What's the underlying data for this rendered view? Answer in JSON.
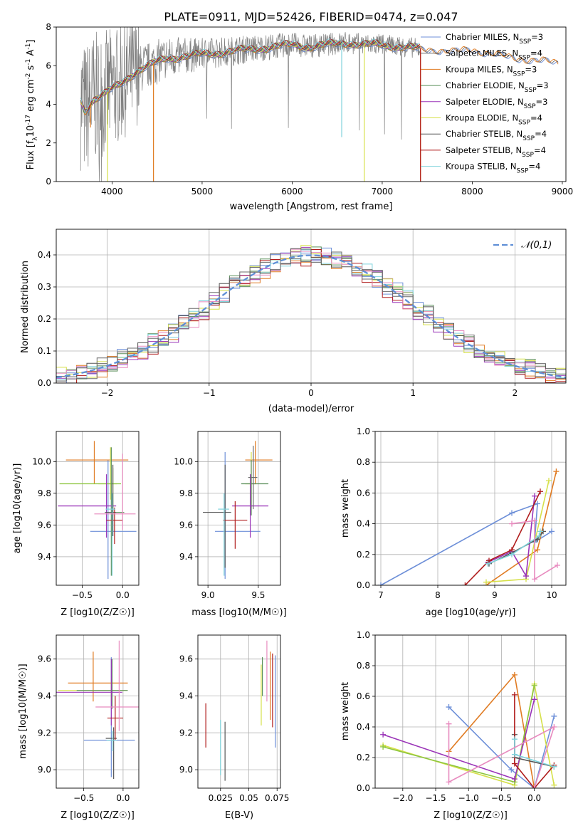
{
  "figure": {
    "title": "PLATE=0911, MJD=52426, FIBERID=0474, z=0.047"
  },
  "palette": {
    "Chabrier MILES": "#6d8fd8",
    "Salpeter MILES": "#6b6b6b",
    "Kroupa MILES": "#e07b22",
    "Chabrier ELODIE": "#5a8f5a",
    "Salpeter ELODIE": "#9a34b8",
    "Kroupa ELODIE": "#d6e04a",
    "Chabrier STELIB": "#555555",
    "Salpeter STELIB": "#b01c1c",
    "Kroupa STELIB": "#7fd3dc",
    "extra_pink": "#e88bbf",
    "extra_green": "#8dc63f",
    "observed": "#808080",
    "normal_curve": "#5f8fd6"
  },
  "chart_data": [
    {
      "panel": "spectrum",
      "type": "line",
      "title": "PLATE=0911, MJD=52426, FIBERID=0474, z=0.047",
      "xlabel": "wavelength [Angstrom, rest frame]",
      "ylabel": "Flux [f_λ 10^-17 erg cm^-2 s^-1 A^-1]",
      "xlim": [
        3380,
        9040
      ],
      "ylim": [
        0,
        8
      ],
      "xticks": [
        4000,
        5000,
        6000,
        7000,
        8000,
        9000
      ],
      "yticks": [
        0,
        2,
        4,
        6,
        8
      ],
      "grid": false,
      "legend_position": "top-right",
      "legend": [
        "Chabrier MILES, N_SSP=3",
        "Salpeter MILES, N_SSP=4",
        "Kroupa MILES, N_SSP=3",
        "Chabrier ELODIE, N_SSP=3",
        "Salpeter ELODIE, N_SSP=3",
        "Kroupa ELODIE, N_SSP=4",
        "Chabrier STELIB, N_SSP=4",
        "Salpeter STELIB, N_SSP=4",
        "Kroupa STELIB, N_SSP=4"
      ],
      "continuum": {
        "x": [
          3650,
          3700,
          3800,
          3900,
          4000,
          4100,
          4200,
          4300,
          4400,
          4500,
          4600,
          4800,
          5000,
          5200,
          5400,
          5600,
          5800,
          6000,
          6200,
          6400,
          6600,
          6800,
          7000,
          7200,
          7400,
          7600,
          7800,
          8000,
          8200,
          8400,
          8600,
          8800,
          8960
        ],
        "y": [
          4.2,
          3.7,
          4.3,
          4.5,
          4.8,
          5.1,
          5.5,
          5.8,
          6.0,
          6.2,
          6.4,
          6.5,
          6.6,
          6.7,
          6.8,
          6.9,
          7.0,
          7.1,
          7.0,
          7.1,
          7.2,
          7.1,
          7.1,
          7.0,
          6.9,
          6.9,
          6.8,
          6.9,
          6.7,
          6.5,
          6.4,
          6.3,
          6.2
        ]
      },
      "obs_range": [
        3650,
        7420
      ],
      "obs_noise_band": [
        {
          "x": 3650,
          "lo": 0.0,
          "hi": 8.0
        },
        {
          "x": 4200,
          "lo": 1.5,
          "hi": 8.0
        },
        {
          "x": 5000,
          "lo": 4.0,
          "hi": 8.0
        },
        {
          "x": 6000,
          "lo": 5.0,
          "hi": 8.0
        },
        {
          "x": 7420,
          "lo": 5.5,
          "hi": 8.0
        }
      ],
      "model_dips": [
        {
          "x": 3760,
          "to": 2.8,
          "colors": [
            "Kroupa MILES"
          ]
        },
        {
          "x": 3950,
          "to": 0.0,
          "colors": [
            "Kroupa ELODIE"
          ]
        },
        {
          "x": 4460,
          "to": 0.0,
          "colors": [
            "Kroupa MILES"
          ]
        },
        {
          "x": 6550,
          "to": 2.3,
          "colors": [
            "Kroupa STELIB"
          ]
        },
        {
          "x": 6800,
          "to": 0.0,
          "colors": [
            "Kroupa ELODIE"
          ]
        },
        {
          "x": 7425,
          "to": 0.0,
          "colors": [
            "Kroupa MILES",
            "Salpeter STELIB"
          ]
        }
      ]
    },
    {
      "panel": "residuals",
      "type": "histogram",
      "xlabel": "(data-model)/error",
      "ylabel": "Normed distribution",
      "xlim": [
        -2.5,
        2.5
      ],
      "ylim": [
        0,
        0.48
      ],
      "xticks": [
        -2,
        -1,
        0,
        1,
        2
      ],
      "yticks": [
        0.0,
        0.1,
        0.2,
        0.3,
        0.4
      ],
      "grid": true,
      "legend_position": "top-right",
      "legend": [
        "𝒩(0,1)"
      ],
      "bin_width": 0.1,
      "reference": {
        "mean": 0,
        "sigma": 1,
        "type": "normal"
      },
      "series_offsets": [
        0.01,
        -0.012,
        0.015,
        -0.008,
        0.006,
        -0.015,
        0.012,
        -0.005,
        0.009,
        0.0
      ]
    },
    {
      "panel": "age_vs_Z",
      "type": "errorbar",
      "xlabel": "Z [log10(Z/Z☉)]",
      "ylabel": "age [log10(age/yr)]",
      "xlim": [
        -0.82,
        0.2
      ],
      "ylim": [
        9.22,
        10.19
      ],
      "xticks": [
        -0.5,
        0.0
      ],
      "yticks": [
        9.4,
        9.6,
        9.8,
        10.0
      ],
      "grid": true,
      "points": [
        {
          "x": -0.18,
          "xerr": [
            0.22,
            0.35
          ],
          "y": 9.56,
          "yerr": [
            0.3,
            0.45
          ],
          "color": "Chabrier MILES"
        },
        {
          "x": -0.35,
          "xerr": [
            0.35,
            0.42
          ],
          "y": 10.01,
          "yerr": [
            0.15,
            0.12
          ],
          "color": "Kroupa MILES"
        },
        {
          "x": -0.15,
          "xerr": [
            0.15,
            0.08
          ],
          "y": 9.86,
          "yerr": [
            0.1,
            0.23
          ],
          "color": "Kroupa ELODIE"
        },
        {
          "x": -0.12,
          "xerr": [
            0.66,
            0.1
          ],
          "y": 9.86,
          "yerr": [
            0.2,
            0.1
          ],
          "color": "extra_green"
        },
        {
          "x": -0.14,
          "xerr": [
            0.06,
            0.16
          ],
          "y": 9.68,
          "yerr": [
            0.4,
            0.41
          ],
          "color": "Chabrier ELODIE"
        },
        {
          "x": -0.2,
          "xerr": [
            0.6,
            0.12
          ],
          "y": 9.72,
          "yerr": [
            0.2,
            0.2
          ],
          "color": "Salpeter ELODIE"
        },
        {
          "x": -0.12,
          "xerr": [
            0.1,
            0.04
          ],
          "y": 9.68,
          "yerr": [
            0.15,
            0.3
          ],
          "color": "Chabrier STELIB"
        },
        {
          "x": -0.1,
          "xerr": [
            0.1,
            0.1
          ],
          "y": 9.63,
          "yerr": [
            0.15,
            0.08
          ],
          "color": "Salpeter STELIB"
        },
        {
          "x": -0.13,
          "xerr": [
            0.08,
            0.04
          ],
          "y": 9.7,
          "yerr": [
            0.42,
            0.1
          ],
          "color": "Kroupa STELIB"
        },
        {
          "x": 0.0,
          "xerr": [
            0.35,
            0.16
          ],
          "y": 9.67,
          "yerr": [
            0.1,
            0.38
          ],
          "color": "extra_pink"
        }
      ]
    },
    {
      "panel": "age_vs_mass",
      "type": "errorbar",
      "xlabel": "mass [log10(M/M☉)]",
      "ylabel": "",
      "xlim": [
        8.9,
        9.72
      ],
      "ylim": [
        9.22,
        10.19
      ],
      "xticks": [
        9.0,
        9.5
      ],
      "yticks": [
        9.4,
        9.6,
        9.8,
        10.0
      ],
      "grid": true,
      "points": [
        {
          "x": 9.17,
          "xerr": [
            0.1,
            0.35
          ],
          "y": 9.56,
          "yerr": [
            0.3,
            0.5
          ],
          "color": "Chabrier MILES"
        },
        {
          "x": 9.47,
          "xerr": [
            0.1,
            0.17
          ],
          "y": 10.01,
          "yerr": [
            0.15,
            0.12
          ],
          "color": "Kroupa MILES"
        },
        {
          "x": 9.43,
          "xerr": [
            0.06,
            0.05
          ],
          "y": 9.86,
          "yerr": [
            0.15,
            0.2
          ],
          "color": "Kroupa ELODIE"
        },
        {
          "x": 9.43,
          "xerr": [
            0.1,
            0.17
          ],
          "y": 9.86,
          "yerr": [
            0.2,
            0.15
          ],
          "color": "Chabrier ELODIE"
        },
        {
          "x": 9.42,
          "xerr": [
            0.18,
            0.18
          ],
          "y": 9.72,
          "yerr": [
            0.2,
            0.2
          ],
          "color": "Salpeter ELODIE"
        },
        {
          "x": 9.17,
          "xerr": [
            0.22,
            0.06
          ],
          "y": 9.68,
          "yerr": [
            0.35,
            0.3
          ],
          "color": "Chabrier STELIB"
        },
        {
          "x": 9.27,
          "xerr": [
            0.12,
            0.12
          ],
          "y": 9.63,
          "yerr": [
            0.18,
            0.12
          ],
          "color": "Salpeter STELIB"
        },
        {
          "x": 9.16,
          "xerr": [
            0.06,
            0.05
          ],
          "y": 9.7,
          "yerr": [
            0.42,
            0.1
          ],
          "color": "Kroupa STELIB"
        },
        {
          "x": 9.45,
          "xerr": [
            0.05,
            0.04
          ],
          "y": 9.9,
          "yerr": [
            0.2,
            0.2
          ],
          "color": "Salpeter MILES"
        }
      ]
    },
    {
      "panel": "mass_weight_vs_age",
      "type": "line",
      "xlabel": "age [log10(age/yr)]",
      "ylabel": "mass weight",
      "xlim": [
        6.9,
        10.25
      ],
      "ylim": [
        0.0,
        1.0
      ],
      "xticks": [
        7,
        8,
        9,
        10
      ],
      "yticks": [
        0.0,
        0.2,
        0.4,
        0.6,
        0.8,
        1.0
      ],
      "grid": true,
      "series": [
        {
          "color": "Chabrier MILES",
          "x": [
            7.0,
            9.3,
            9.75,
            9.7,
            10.0
          ],
          "y": [
            0.0,
            0.47,
            0.53,
            0.28,
            0.35
          ]
        },
        {
          "color": "Kroupa MILES",
          "x": [
            8.85,
            9.75,
            10.08
          ],
          "y": [
            0.0,
            0.23,
            0.74
          ]
        },
        {
          "color": "Kroupa ELODIE",
          "x": [
            8.85,
            9.55,
            9.95
          ],
          "y": [
            0.02,
            0.04,
            0.68
          ]
        },
        {
          "color": "Salpeter ELODIE",
          "x": [
            8.88,
            9.3,
            9.55,
            9.7
          ],
          "y": [
            0.15,
            0.22,
            0.06,
            0.58
          ]
        },
        {
          "color": "Chabrier STELIB",
          "x": [
            8.9,
            9.3,
            9.75,
            9.85
          ],
          "y": [
            0.14,
            0.21,
            0.3,
            0.35
          ]
        },
        {
          "color": "Salpeter STELIB",
          "x": [
            8.48,
            8.9,
            9.3,
            9.8
          ],
          "y": [
            0.0,
            0.16,
            0.23,
            0.61
          ]
        },
        {
          "color": "Kroupa STELIB",
          "x": [
            8.88,
            9.3,
            9.78,
            9.8
          ],
          "y": [
            0.14,
            0.2,
            0.32,
            0.35
          ]
        },
        {
          "color": "extra_pink",
          "x": [
            9.3,
            9.7,
            9.7,
            10.1
          ],
          "y": [
            0.4,
            0.42,
            0.04,
            0.13
          ]
        }
      ]
    },
    {
      "panel": "mass_vs_Z",
      "type": "errorbar",
      "xlabel": "Z [log10(Z/Z☉)]",
      "ylabel": "mass [log10(M/M☉)]",
      "xlim": [
        -0.85,
        0.2
      ],
      "ylim": [
        8.9,
        9.73
      ],
      "xticks": [
        -0.5,
        0.0
      ],
      "yticks": [
        9.0,
        9.2,
        9.4,
        9.6
      ],
      "grid": true,
      "points": [
        {
          "x": -0.15,
          "xerr": [
            0.35,
            0.3
          ],
          "y": 9.16,
          "yerr": [
            0.2,
            0.45
          ],
          "color": "Chabrier MILES"
        },
        {
          "x": -0.38,
          "xerr": [
            0.32,
            0.44
          ],
          "y": 9.47,
          "yerr": [
            0.1,
            0.17
          ],
          "color": "Kroupa MILES"
        },
        {
          "x": -0.15,
          "xerr": [
            0.68,
            0.2
          ],
          "y": 9.43,
          "yerr": [
            0.06,
            0.05
          ],
          "color": "Kroupa ELODIE"
        },
        {
          "x": -0.14,
          "xerr": [
            0.45,
            0.2
          ],
          "y": 9.43,
          "yerr": [
            0.1,
            0.17
          ],
          "color": "Chabrier ELODIE"
        },
        {
          "x": -0.15,
          "xerr": [
            0.72,
            0.14
          ],
          "y": 9.42,
          "yerr": [
            0.18,
            0.18
          ],
          "color": "Salpeter ELODIE"
        },
        {
          "x": -0.12,
          "xerr": [
            0.1,
            0.04
          ],
          "y": 9.17,
          "yerr": [
            0.22,
            0.06
          ],
          "color": "Chabrier STELIB"
        },
        {
          "x": -0.1,
          "xerr": [
            0.1,
            0.1
          ],
          "y": 9.28,
          "yerr": [
            0.12,
            0.12
          ],
          "color": "Salpeter STELIB"
        },
        {
          "x": -0.13,
          "xerr": [
            0.08,
            0.05
          ],
          "y": 9.16,
          "yerr": [
            0.06,
            0.05
          ],
          "color": "Kroupa STELIB"
        },
        {
          "x": -0.05,
          "xerr": [
            0.3,
            0.25
          ],
          "y": 9.34,
          "yerr": [
            0.13,
            0.36
          ],
          "color": "extra_pink"
        }
      ]
    },
    {
      "panel": "mass_vs_EBV",
      "type": "errorbar",
      "xlabel": "E(B-V)",
      "ylabel": "",
      "xlim": [
        0.005,
        0.078
      ],
      "ylim": [
        8.9,
        9.73
      ],
      "xticks": [
        0.025,
        0.05,
        0.075
      ],
      "yticks": [
        9.0,
        9.2,
        9.4,
        9.6
      ],
      "grid": true,
      "points": [
        {
          "x": 0.0735,
          "y": 9.37,
          "yerr": [
            0.25,
            0.25
          ],
          "color": "Chabrier MILES"
        },
        {
          "x": 0.069,
          "y": 9.47,
          "yerr": [
            0.2,
            0.17
          ],
          "color": "Kroupa MILES"
        },
        {
          "x": 0.061,
          "y": 9.42,
          "yerr": [
            0.18,
            0.15
          ],
          "color": "Kroupa ELODIE"
        },
        {
          "x": 0.066,
          "y": 9.47,
          "yerr": [
            0.1,
            0.23
          ],
          "color": "extra_pink"
        },
        {
          "x": 0.062,
          "y": 9.48,
          "yerr": [
            0.08,
            0.13
          ],
          "color": "Chabrier ELODIE"
        },
        {
          "x": 0.012,
          "y": 9.24,
          "yerr": [
            0.12,
            0.12
          ],
          "color": "Salpeter STELIB"
        },
        {
          "x": 0.025,
          "y": 9.1,
          "yerr": [
            0.13,
            0.17
          ],
          "color": "Kroupa STELIB"
        },
        {
          "x": 0.029,
          "y": 9.1,
          "yerr": [
            0.16,
            0.16
          ],
          "color": "Chabrier STELIB"
        },
        {
          "x": 0.071,
          "y": 9.38,
          "yerr": [
            0.15,
            0.25
          ],
          "color": "Salpeter STELIB"
        }
      ]
    },
    {
      "panel": "mass_weight_vs_Z",
      "type": "line",
      "xlabel": "Z [log10(Z/Z☉)]",
      "ylabel": "mass weight",
      "xlim": [
        -2.42,
        0.48
      ],
      "ylim": [
        0.0,
        1.0
      ],
      "xticks": [
        -2.0,
        -1.5,
        -1.0,
        -0.5,
        0.0
      ],
      "yticks": [
        0.0,
        0.2,
        0.4,
        0.6,
        0.8,
        1.0
      ],
      "grid": true,
      "series": [
        {
          "color": "Chabrier MILES",
          "x": [
            -1.3,
            -0.35,
            0.0,
            0.3
          ],
          "y": [
            0.53,
            0.12,
            0.0,
            0.47
          ]
        },
        {
          "color": "Kroupa MILES",
          "x": [
            -1.3,
            -0.3,
            0.0
          ],
          "y": [
            0.24,
            0.74,
            0.0
          ]
        },
        {
          "color": "Kroupa ELODIE",
          "x": [
            -2.3,
            -0.3,
            0.0,
            0.3
          ],
          "y": [
            0.28,
            0.02,
            0.68,
            0.02
          ]
        },
        {
          "color": "extra_green",
          "x": [
            -2.3,
            -0.3,
            0.0
          ],
          "y": [
            0.27,
            0.04,
            0.67
          ]
        },
        {
          "color": "Salpeter ELODIE",
          "x": [
            -2.3,
            -0.3,
            0.0
          ],
          "y": [
            0.35,
            0.06,
            0.58
          ]
        },
        {
          "color": "Chabrier STELIB",
          "x": [
            -0.3,
            -0.3,
            0.3
          ],
          "y": [
            0.35,
            0.2,
            0.14
          ]
        },
        {
          "color": "Salpeter STELIB",
          "x": [
            -0.3,
            -0.3,
            0.0,
            0.3
          ],
          "y": [
            0.61,
            0.16,
            0.0,
            0.15
          ]
        },
        {
          "color": "Kroupa STELIB",
          "x": [
            -0.3,
            -0.3,
            0.3
          ],
          "y": [
            0.32,
            0.22,
            0.14
          ]
        },
        {
          "color": "extra_pink",
          "x": [
            -1.3,
            -1.3,
            0.3,
            0.0
          ],
          "y": [
            0.42,
            0.04,
            0.4,
            0.0
          ]
        }
      ]
    }
  ]
}
